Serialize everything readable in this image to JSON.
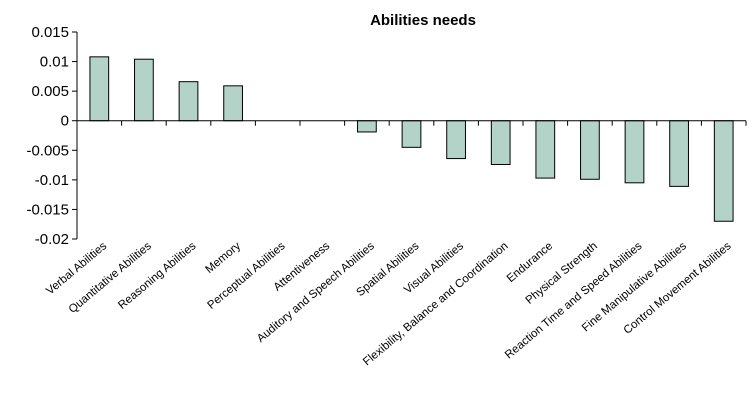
{
  "chart_data": {
    "type": "bar",
    "title": "Abilities needs",
    "xlabel": "",
    "ylabel": "",
    "ylim": [
      -0.02,
      0.015
    ],
    "yticks": [
      0.015,
      0.01,
      0.005,
      0,
      -0.005,
      -0.01,
      -0.015,
      -0.02
    ],
    "ytick_labels": [
      "0.015",
      "0.01",
      "0.005",
      "0",
      "-0.005",
      "-0.01",
      "-0.015",
      "-0.02"
    ],
    "grid": false,
    "legend": "none",
    "bar_color": "#b3d3c8",
    "bar_edge_color": "#000000",
    "categories": [
      "Verbal Abilities",
      "Quantitative Abilities",
      "Reasoning Abilities",
      "Memory",
      "Perceptual Abilities",
      "Attentiveness",
      "Auditory and Speech Abilities",
      "Spatial Abilities",
      "Visual Abilities",
      "Flexibility, Balance and Coordination",
      "Endurance",
      "Physical Strength",
      "Reaction Time and Speed Abilities",
      "Fine Manipulative Abilities",
      "Control Movement Abilities"
    ],
    "values": [
      0.0108,
      0.0104,
      0.0066,
      0.0059,
      0.0,
      0.0,
      -0.0019,
      -0.0045,
      -0.0064,
      -0.0074,
      -0.0097,
      -0.0099,
      -0.0105,
      -0.0111,
      -0.017
    ]
  }
}
